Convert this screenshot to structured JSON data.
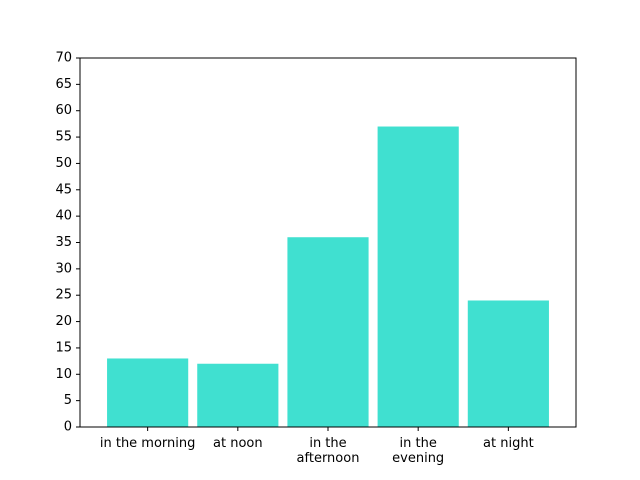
{
  "chart_data": {
    "type": "bar",
    "title": "",
    "xlabel": "",
    "ylabel": "",
    "categories": [
      [
        "in the morning"
      ],
      [
        "at noon"
      ],
      [
        "in the",
        "afternoon"
      ],
      [
        "in the",
        "evening"
      ],
      [
        "at night"
      ]
    ],
    "values": [
      13,
      12,
      36,
      57,
      24
    ],
    "ylim": [
      0,
      70
    ],
    "yticks": [
      0,
      5,
      10,
      15,
      20,
      25,
      30,
      35,
      40,
      45,
      50,
      55,
      60,
      65,
      70
    ],
    "bar_color": "#40E0D0",
    "grid": false,
    "legend": "none"
  }
}
